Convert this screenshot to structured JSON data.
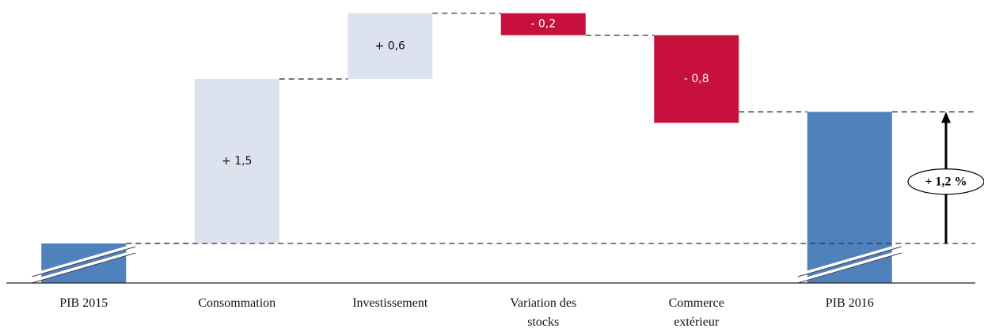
{
  "chart_data": {
    "type": "waterfall",
    "categories": [
      "PIB 2015",
      "Consommation",
      "Investissement",
      "Variation des stocks",
      "Commerce extérieur",
      "PIB 2016"
    ],
    "measure": [
      "absolute",
      "relative",
      "relative",
      "relative",
      "relative",
      "total"
    ],
    "values": [
      0,
      1.5,
      0.6,
      -0.2,
      -0.8,
      1.2
    ],
    "value_labels": [
      null,
      "+ 1,5",
      "+ 0,6",
      "- 0,2",
      "- 0,8",
      "+ 1,2 %"
    ],
    "colors": {
      "absolute": "#4f81bd",
      "increase": "#dce3ee",
      "decrease": "#c8103c",
      "total": "#4f81bd"
    }
  }
}
